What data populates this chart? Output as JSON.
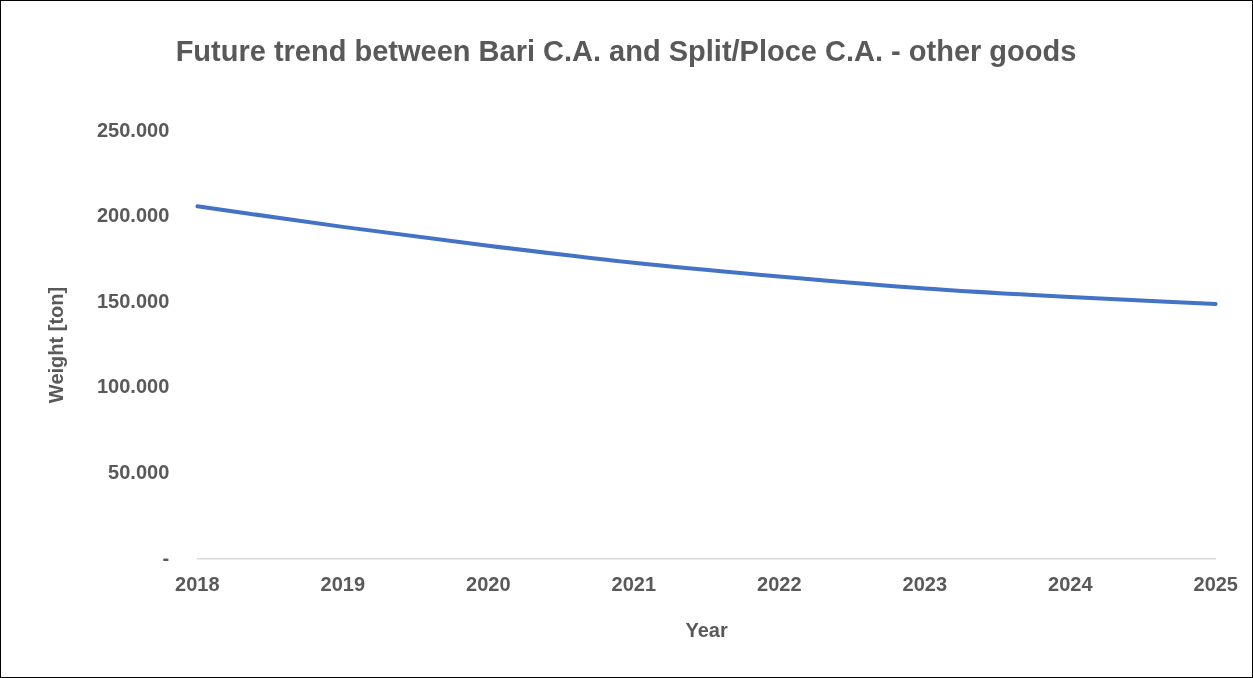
{
  "chart_data": {
    "type": "line",
    "title": "Future trend between Bari C.A. and Split/Ploce C.A. - other goods",
    "xlabel": "Year",
    "ylabel": "Weight [ton]",
    "categories": [
      "2018",
      "2019",
      "2020",
      "2021",
      "2022",
      "2023",
      "2024",
      "2025"
    ],
    "series": [
      {
        "color": "#4472c4",
        "values": [
          206000,
          194000,
          183000,
          173000,
          165000,
          158000,
          153000,
          149000
        ]
      }
    ],
    "ylim": [
      0,
      250000
    ],
    "yticks": [
      {
        "value": 0,
        "label": "-"
      },
      {
        "value": 50000,
        "label": "50.000"
      },
      {
        "value": 100000,
        "label": "100.000"
      },
      {
        "value": 150000,
        "label": "150.000"
      },
      {
        "value": 200000,
        "label": "200.000"
      },
      {
        "value": 250000,
        "label": "250.000"
      }
    ],
    "grid": false,
    "legend": false,
    "marker": "none",
    "line_style": "solid"
  }
}
